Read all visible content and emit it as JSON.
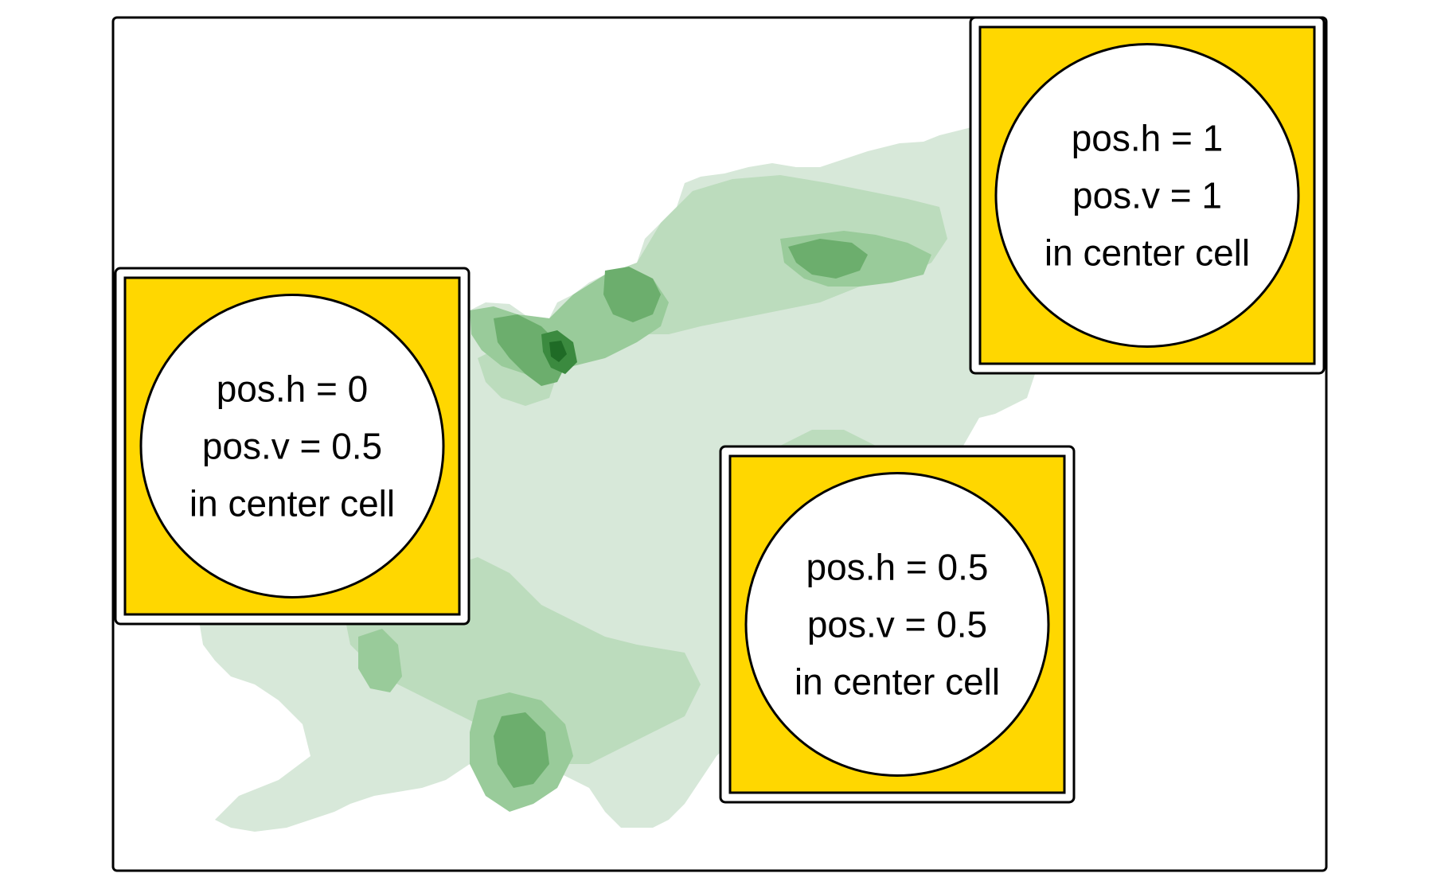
{
  "map": {
    "colors": {
      "frame": "#000000",
      "background": "#ffffff",
      "elevation_1": "#d7e8d9",
      "elevation_2": "#bcdcbd",
      "elevation_3": "#99cb9a",
      "elevation_4": "#6cae6d",
      "elevation_5": "#3b8a3f",
      "elevation_6": "#1f6b26"
    }
  },
  "labels": [
    {
      "id": "left",
      "box_fill": "#ffd700",
      "circle_fill": "#ffffff",
      "lines": [
        "pos.h = 0",
        "pos.v = 0.5",
        "in center cell"
      ]
    },
    {
      "id": "top-right",
      "box_fill": "#ffd700",
      "circle_fill": "#ffffff",
      "lines": [
        "pos.h = 1",
        "pos.v = 1",
        "in center cell"
      ]
    },
    {
      "id": "center",
      "box_fill": "#ffd700",
      "circle_fill": "#ffffff",
      "lines": [
        "pos.h = 0.5",
        "pos.v = 0.5",
        "in center cell"
      ]
    }
  ]
}
